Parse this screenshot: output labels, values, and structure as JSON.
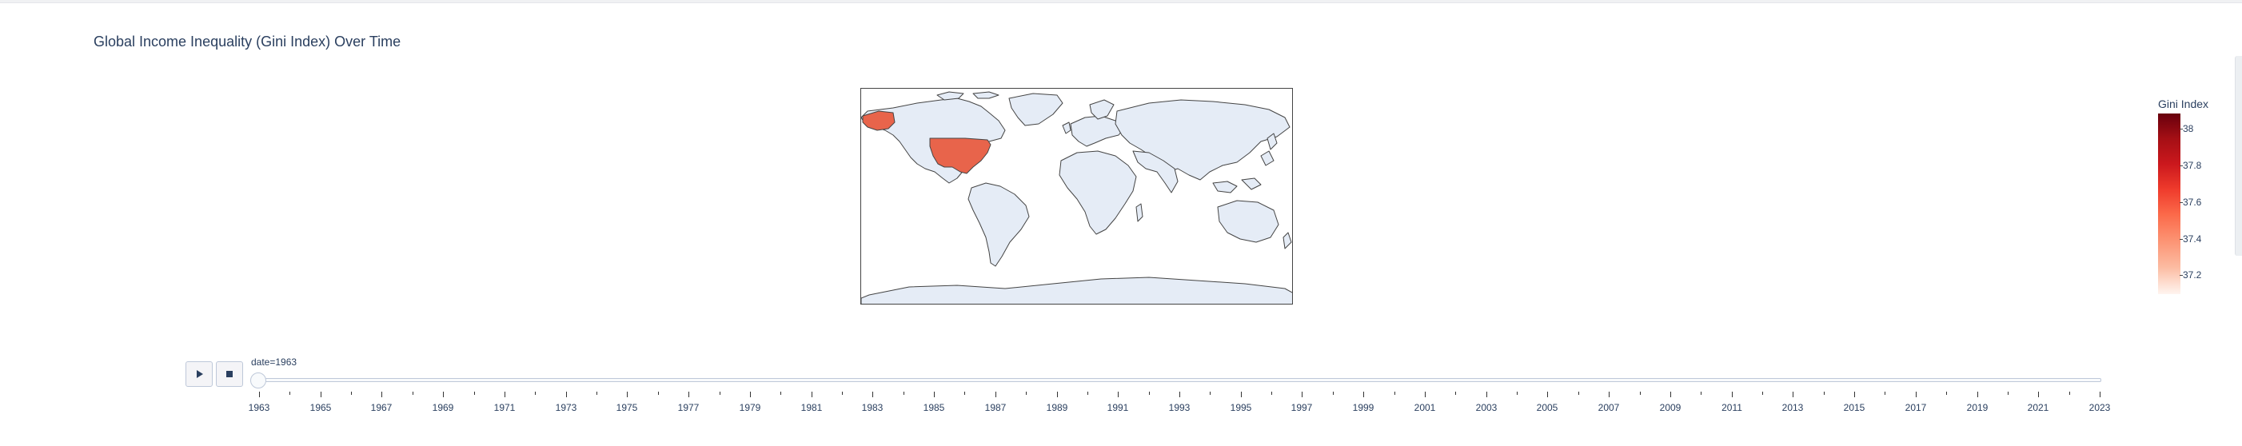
{
  "title": "Global Income Inequality (Gini Index) Over Time",
  "colorbar": {
    "title": "Gini Index",
    "ticks": [
      "38",
      "37.8",
      "37.6",
      "37.4",
      "37.2"
    ],
    "colorscale": [
      "#67000d",
      "#a50f15",
      "#cb181d",
      "#ef3b2c",
      "#fb6a4a",
      "#fc9272",
      "#fcbba1",
      "#fff5f0"
    ],
    "range": [
      37.1,
      38.1
    ]
  },
  "map": {
    "projection": "equirectangular",
    "land_color": "#e5ecf6",
    "coastline_color": "#444444",
    "highlighted": [
      {
        "country": "United States of America",
        "value": 37.5,
        "color": "#e8644b"
      }
    ]
  },
  "slider": {
    "current_label": "date=1963",
    "current_value": 1963,
    "range": [
      1963,
      2023
    ],
    "tick_labels": [
      "1963",
      "1965",
      "1967",
      "1969",
      "1971",
      "1973",
      "1975",
      "1977",
      "1979",
      "1981",
      "1983",
      "1985",
      "1987",
      "1989",
      "1991",
      "1993",
      "1995",
      "1997",
      "1999",
      "2001",
      "2003",
      "2005",
      "2007",
      "2009",
      "2011",
      "2013",
      "2015",
      "2017",
      "2019",
      "2021",
      "2023"
    ]
  },
  "controls": {
    "play": "play-icon",
    "stop": "stop-icon"
  }
}
